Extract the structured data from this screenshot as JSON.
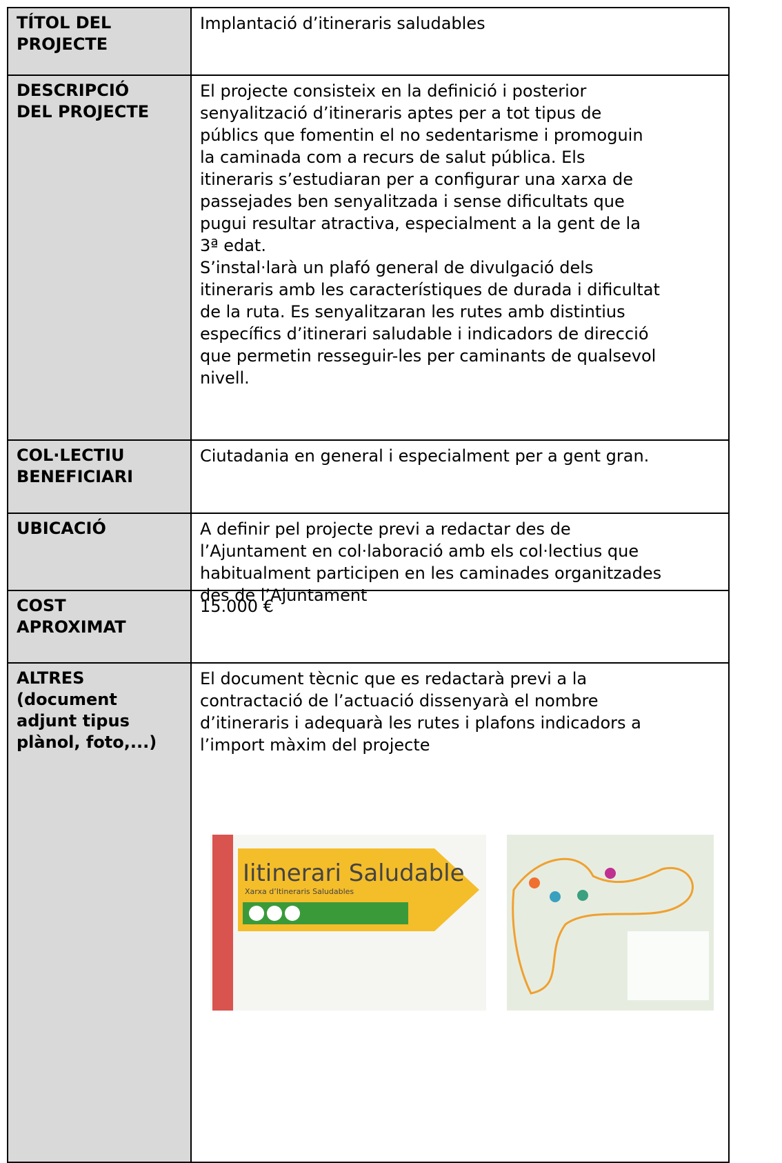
{
  "table": {
    "rows": [
      {
        "label": [
          "TÍTOL DEL",
          "PROJECTE"
        ],
        "content": [
          "Implantació d’itineraris saludables"
        ]
      },
      {
        "label": [
          "DESCRIPCIÓ",
          "DEL PROJECTE"
        ],
        "content": [
          "El projecte consisteix en la definició i posterior",
          "senyalització d’itineraris aptes per a tot tipus de",
          "públics que fomentin el no sedentarisme i promoguin",
          "la caminada com a recurs de salut pública. Els",
          "itineraris s’estudiaran per a configurar una xarxa de",
          "passejades ben senyalitzada i sense dificultats que",
          "pugui resultar atractiva, especialment a la gent de la",
          "3ª edat.",
          "S’instal·larà un plafó general de divulgació dels",
          "itineraris amb les característiques de durada i dificultat",
          "de la ruta. Es senyalitzaran les rutes amb distintius",
          "específics d’itinerari saludable i indicadors de direcció",
          "que permetin resseguir-les per caminants de qualsevol",
          "nivell."
        ]
      },
      {
        "label": [
          "COL·LECTIU",
          "BENEFICIARI"
        ],
        "content": [
          "Ciutadania en general i especialment per a gent gran."
        ]
      },
      {
        "label": [
          "UBICACIÓ"
        ],
        "content": [
          "A definir pel projecte previ a redactar des de",
          "l’Ajuntament en col·laboració amb els col·lectius que",
          "habitualment participen en les caminades organitzades",
          "des de l’Ajuntament"
        ]
      },
      {
        "label": [
          "COST",
          "APROXIMAT"
        ],
        "content": [
          "15.000 €"
        ]
      },
      {
        "label": [
          "ALTRES",
          "(document",
          "adjunt tipus",
          "plànol, foto,...)"
        ],
        "content": [
          "El document tècnic que es redactarà previ a la",
          "contractació de l’actuació dissenyarà el nombre",
          "d’itineraris i adequarà les rutes i plafons indicadors a",
          "l’import màxim del projecte"
        ]
      }
    ]
  },
  "images": {
    "sign_title": "Iitinerari Saludable",
    "sign_subtitle": "Xarxa d’Itineraris Saludables"
  }
}
